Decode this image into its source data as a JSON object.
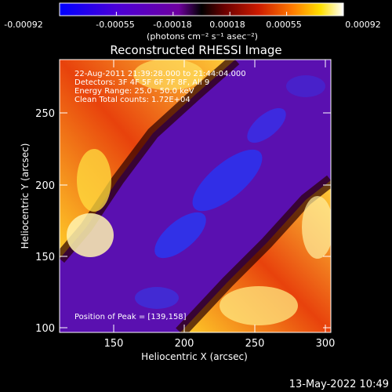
{
  "colorbar": {
    "tick_labels": [
      "-0.00092",
      "-0.00055",
      "-0.00018",
      "0.00018",
      "0.00055",
      "0.00092"
    ],
    "unit_label": "(photons cm⁻² s⁻¹ asec⁻²)",
    "range": [
      -0.00092,
      0.00092
    ]
  },
  "plot": {
    "title": "Reconstructed RHESSI Image",
    "xlabel": "Heliocentric X (arcsec)",
    "ylabel": "Heliocentric Y (arcsec)",
    "x_tick_labels": [
      "150",
      "200",
      "250",
      "300"
    ],
    "y_tick_labels": [
      "100",
      "150",
      "200",
      "250"
    ],
    "xlim": [
      110,
      302
    ],
    "ylim": [
      96,
      272
    ]
  },
  "info": {
    "line1": "22-Aug-2011 21:39:28.000 to 21:44:04.000",
    "line2": "Detectors: 3F 4F 5F 6F 7F 8F, All 9",
    "line3": "Energy Range: 25.0 - 50.0 keV",
    "line4": "Clean    Total counts: 1.72E+04",
    "peak": "Position of Peak = [139,158]"
  },
  "footer": {
    "timestamp": "13-May-2022 10:49"
  }
}
